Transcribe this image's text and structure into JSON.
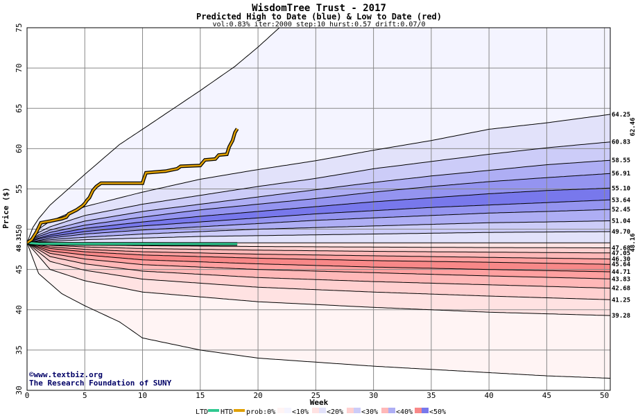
{
  "chart_data": {
    "type": "area",
    "title": "WisdomTree Trust - 2017",
    "subtitle": "Predicted High to Date (blue) &  Low to Date (red)",
    "params": "vol:0.83% iter:2000 step:10 hurst:0.57 drift:0.07/0",
    "xlabel": "Week",
    "ylabel": "Price ($)",
    "xlim": [
      0,
      50.5
    ],
    "ylim": [
      30,
      75
    ],
    "xticks": [
      0,
      5,
      10,
      15,
      20,
      25,
      30,
      35,
      40,
      45,
      50
    ],
    "yticks": [
      30,
      35,
      40,
      45,
      50,
      55,
      60,
      65,
      70,
      75
    ],
    "start_price": 48.31,
    "start_label": "48.31",
    "htd_value_label": "62.46",
    "ltd_value_label": "48.16",
    "colors": {
      "htd": "#e0a000",
      "ltd": "#30c890",
      "htd_label": "#b07800",
      "ltd_label": "#008866",
      "blue_bands": [
        "#f4f4ff",
        "#e2e2fa",
        "#ccccf8",
        "#aeaef4",
        "#9494f0",
        "#7878ec"
      ],
      "red_bands": [
        "#fff4f4",
        "#ffe2e2",
        "#ffd0d0",
        "#ffb8b8",
        "#ffa0a0",
        "#f88888"
      ]
    },
    "upper_percentiles": [
      {
        "label": "",
        "end": 76.5,
        "curve": [
          [
            0,
            48.31
          ],
          [
            0.5,
            50.2
          ],
          [
            1,
            51.3
          ],
          [
            2,
            53.0
          ],
          [
            5,
            56.8
          ],
          [
            8,
            60.5
          ],
          [
            10,
            62.4
          ],
          [
            15,
            67.2
          ],
          [
            18,
            70.2
          ],
          [
            20,
            72.6
          ],
          [
            22,
            75.2
          ],
          [
            25,
            79.0
          ]
        ]
      },
      {
        "label": "64.25",
        "end": 64.25,
        "curve": [
          [
            0,
            48.31
          ],
          [
            1,
            50.0
          ],
          [
            2,
            51.0
          ],
          [
            5,
            52.8
          ],
          [
            10,
            54.6
          ],
          [
            15,
            56.2
          ],
          [
            20,
            57.4
          ],
          [
            25,
            58.5
          ],
          [
            30,
            59.8
          ],
          [
            35,
            61.0
          ],
          [
            40,
            62.4
          ],
          [
            45,
            63.2
          ],
          [
            50.5,
            64.25
          ]
        ]
      },
      {
        "label": "60.83",
        "end": 60.83,
        "curve": [
          [
            0,
            48.31
          ],
          [
            1,
            49.6
          ],
          [
            2,
            50.3
          ],
          [
            5,
            51.7
          ],
          [
            10,
            53.1
          ],
          [
            15,
            54.2
          ],
          [
            20,
            55.3
          ],
          [
            25,
            56.3
          ],
          [
            30,
            57.5
          ],
          [
            35,
            58.4
          ],
          [
            40,
            59.3
          ],
          [
            45,
            60.1
          ],
          [
            50.5,
            60.83
          ]
        ]
      },
      {
        "label": "58.55",
        "end": 58.55,
        "curve": [
          [
            0,
            48.31
          ],
          [
            1,
            49.3
          ],
          [
            2,
            49.9
          ],
          [
            5,
            51.0
          ],
          [
            10,
            52.2
          ],
          [
            15,
            53.1
          ],
          [
            20,
            54.0
          ],
          [
            25,
            54.9
          ],
          [
            30,
            55.8
          ],
          [
            35,
            56.6
          ],
          [
            40,
            57.3
          ],
          [
            45,
            58.0
          ],
          [
            50.5,
            58.55
          ]
        ]
      },
      {
        "label": "56.91",
        "end": 56.91,
        "curve": [
          [
            0,
            48.31
          ],
          [
            1,
            49.1
          ],
          [
            2,
            49.6
          ],
          [
            5,
            50.5
          ],
          [
            10,
            51.5
          ],
          [
            15,
            52.4
          ],
          [
            20,
            53.1
          ],
          [
            25,
            53.8
          ],
          [
            30,
            54.6
          ],
          [
            35,
            55.3
          ],
          [
            40,
            55.9
          ],
          [
            45,
            56.4
          ],
          [
            50.5,
            56.91
          ]
        ]
      },
      {
        "label": "55.10",
        "end": 55.1,
        "curve": [
          [
            0,
            48.31
          ],
          [
            1,
            48.9
          ],
          [
            2,
            49.3
          ],
          [
            5,
            50.1
          ],
          [
            10,
            50.9
          ],
          [
            15,
            51.6
          ],
          [
            20,
            52.2
          ],
          [
            25,
            52.8
          ],
          [
            30,
            53.4
          ],
          [
            35,
            53.9
          ],
          [
            40,
            54.4
          ],
          [
            45,
            54.8
          ],
          [
            50.5,
            55.1
          ]
        ]
      },
      {
        "label": "53.64",
        "end": 53.64,
        "curve": [
          [
            0,
            48.31
          ],
          [
            1,
            48.8
          ],
          [
            2,
            49.1
          ],
          [
            5,
            49.7
          ],
          [
            10,
            50.4
          ],
          [
            15,
            50.9
          ],
          [
            20,
            51.4
          ],
          [
            25,
            51.9
          ],
          [
            30,
            52.3
          ],
          [
            35,
            52.7
          ],
          [
            40,
            53.0
          ],
          [
            45,
            53.3
          ],
          [
            50.5,
            53.64
          ]
        ]
      },
      {
        "label": "52.45",
        "end": 52.45,
        "curve": [
          [
            0,
            48.31
          ],
          [
            1,
            48.6
          ],
          [
            2,
            48.9
          ],
          [
            5,
            49.4
          ],
          [
            10,
            49.9
          ],
          [
            15,
            50.3
          ],
          [
            20,
            50.7
          ],
          [
            25,
            51.1
          ],
          [
            30,
            51.4
          ],
          [
            35,
            51.7
          ],
          [
            40,
            52.0
          ],
          [
            45,
            52.2
          ],
          [
            50.5,
            52.45
          ]
        ]
      },
      {
        "label": "51.04",
        "end": 51.04,
        "curve": [
          [
            0,
            48.31
          ],
          [
            1,
            48.5
          ],
          [
            2,
            48.7
          ],
          [
            5,
            49.0
          ],
          [
            10,
            49.4
          ],
          [
            15,
            49.7
          ],
          [
            20,
            50.0
          ],
          [
            25,
            50.2
          ],
          [
            30,
            50.4
          ],
          [
            35,
            50.6
          ],
          [
            40,
            50.8
          ],
          [
            45,
            50.9
          ],
          [
            50.5,
            51.04
          ]
        ]
      },
      {
        "label": "49.70",
        "end": 49.7,
        "curve": [
          [
            0,
            48.31
          ],
          [
            1,
            48.4
          ],
          [
            2,
            48.5
          ],
          [
            5,
            48.7
          ],
          [
            10,
            48.9
          ],
          [
            15,
            49.1
          ],
          [
            20,
            49.2
          ],
          [
            25,
            49.3
          ],
          [
            30,
            49.4
          ],
          [
            35,
            49.5
          ],
          [
            40,
            49.6
          ],
          [
            45,
            49.65
          ],
          [
            50.5,
            49.7
          ]
        ]
      }
    ],
    "lower_percentiles": [
      {
        "label": "47.68",
        "end": 47.68,
        "curve": [
          [
            0,
            48.31
          ],
          [
            2,
            48.2
          ],
          [
            5,
            48.05
          ],
          [
            10,
            47.95
          ],
          [
            20,
            47.85
          ],
          [
            30,
            47.78
          ],
          [
            40,
            47.72
          ],
          [
            50.5,
            47.68
          ]
        ]
      },
      {
        "label": "47.05",
        "end": 47.05,
        "curve": [
          [
            0,
            48.31
          ],
          [
            2,
            48.0
          ],
          [
            5,
            47.8
          ],
          [
            10,
            47.6
          ],
          [
            20,
            47.4
          ],
          [
            30,
            47.25
          ],
          [
            40,
            47.15
          ],
          [
            50.5,
            47.05
          ]
        ]
      },
      {
        "label": "46.30",
        "end": 46.3,
        "curve": [
          [
            0,
            48.31
          ],
          [
            2,
            47.8
          ],
          [
            5,
            47.5
          ],
          [
            10,
            47.2
          ],
          [
            20,
            46.9
          ],
          [
            30,
            46.7
          ],
          [
            40,
            46.5
          ],
          [
            50.5,
            46.3
          ]
        ]
      },
      {
        "label": "45.64",
        "end": 45.64,
        "curve": [
          [
            0,
            48.31
          ],
          [
            2,
            47.6
          ],
          [
            5,
            47.2
          ],
          [
            10,
            46.8
          ],
          [
            20,
            46.4
          ],
          [
            30,
            46.1
          ],
          [
            40,
            45.9
          ],
          [
            50.5,
            45.64
          ]
        ]
      },
      {
        "label": "44.71",
        "end": 44.71,
        "curve": [
          [
            0,
            48.31
          ],
          [
            2,
            47.3
          ],
          [
            5,
            46.8
          ],
          [
            10,
            46.2
          ],
          [
            20,
            45.7
          ],
          [
            30,
            45.3
          ],
          [
            40,
            45.0
          ],
          [
            50.5,
            44.71
          ]
        ]
      },
      {
        "label": "43.83",
        "end": 43.83,
        "curve": [
          [
            0,
            48.31
          ],
          [
            2,
            47.0
          ],
          [
            5,
            46.3
          ],
          [
            10,
            45.6
          ],
          [
            20,
            45.0
          ],
          [
            30,
            44.6
          ],
          [
            40,
            44.2
          ],
          [
            50.5,
            43.83
          ]
        ]
      },
      {
        "label": "42.68",
        "end": 42.68,
        "curve": [
          [
            0,
            48.31
          ],
          [
            2,
            46.6
          ],
          [
            5,
            45.7
          ],
          [
            10,
            44.8
          ],
          [
            20,
            44.0
          ],
          [
            30,
            43.5
          ],
          [
            40,
            43.1
          ],
          [
            50.5,
            42.68
          ]
        ]
      },
      {
        "label": "41.25",
        "end": 41.25,
        "curve": [
          [
            0,
            48.31
          ],
          [
            2,
            46.0
          ],
          [
            5,
            44.9
          ],
          [
            10,
            43.8
          ],
          [
            20,
            42.8
          ],
          [
            30,
            42.2
          ],
          [
            40,
            41.7
          ],
          [
            50.5,
            41.25
          ]
        ]
      },
      {
        "label": "39.28",
        "end": 39.28,
        "curve": [
          [
            0,
            48.31
          ],
          [
            2,
            45.0
          ],
          [
            5,
            43.6
          ],
          [
            10,
            42.2
          ],
          [
            20,
            41.0
          ],
          [
            30,
            40.3
          ],
          [
            40,
            39.7
          ],
          [
            50.5,
            39.28
          ]
        ]
      },
      {
        "label": "",
        "end": 31.5,
        "curve": [
          [
            0,
            48.31
          ],
          [
            1,
            44.5
          ],
          [
            3,
            42.0
          ],
          [
            5,
            40.5
          ],
          [
            8,
            38.5
          ],
          [
            10,
            36.5
          ],
          [
            15,
            35.0
          ],
          [
            20,
            34.0
          ],
          [
            25,
            33.5
          ],
          [
            30,
            33.0
          ],
          [
            35,
            32.6
          ],
          [
            40,
            32.2
          ],
          [
            45,
            31.8
          ],
          [
            50.5,
            31.5
          ]
        ]
      }
    ],
    "htd_series": {
      "name": "HTD",
      "points": [
        [
          0,
          48.31
        ],
        [
          0.4,
          48.7
        ],
        [
          0.8,
          49.6
        ],
        [
          1.2,
          50.8
        ],
        [
          2,
          51.0
        ],
        [
          3,
          51.3
        ],
        [
          3.4,
          51.5
        ],
        [
          3.6,
          51.9
        ],
        [
          4.3,
          52.4
        ],
        [
          4.8,
          52.9
        ],
        [
          5,
          53.2
        ],
        [
          5.2,
          53.6
        ],
        [
          5.4,
          53.9
        ],
        [
          5.7,
          54.8
        ],
        [
          6,
          55.3
        ],
        [
          6.4,
          55.7
        ],
        [
          8,
          55.7
        ],
        [
          10,
          55.7
        ],
        [
          10.1,
          56.2
        ],
        [
          10.3,
          57.0
        ],
        [
          12,
          57.2
        ],
        [
          13,
          57.5
        ],
        [
          13.3,
          57.8
        ],
        [
          15,
          57.9
        ],
        [
          15.4,
          58.6
        ],
        [
          16.3,
          58.7
        ],
        [
          16.6,
          59.2
        ],
        [
          17.3,
          59.3
        ],
        [
          17.5,
          60.2
        ],
        [
          17.8,
          61.0
        ],
        [
          18,
          62.0
        ],
        [
          18.2,
          62.46
        ]
      ]
    },
    "ltd_series": {
      "name": "LTD",
      "points": [
        [
          0,
          48.31
        ],
        [
          1,
          48.2
        ],
        [
          5,
          48.18
        ],
        [
          10,
          48.17
        ],
        [
          18.2,
          48.16
        ]
      ]
    },
    "credit_lines": [
      "©www.textbiz.org",
      "The Research Foundation of SUNY"
    ],
    "legend": {
      "ltd": "LTD",
      "htd": "HTD",
      "prob": "prob:0%",
      "bins": [
        "<10%",
        "<20%",
        "<30%",
        "<40%",
        "<50%"
      ]
    }
  }
}
